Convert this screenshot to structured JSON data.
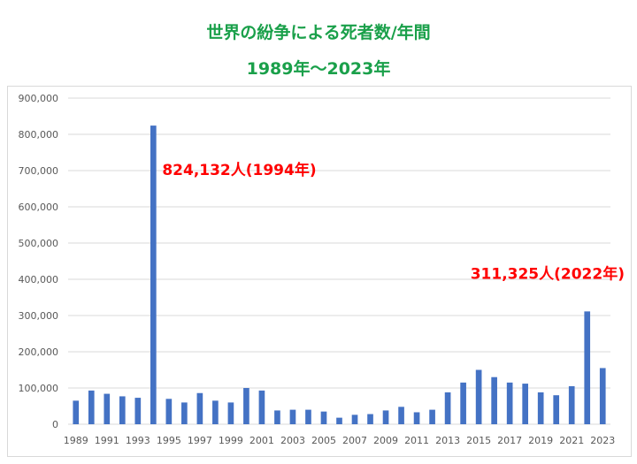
{
  "title": "世界の紛争による死者数/年間",
  "subtitle": "1989年～2023年",
  "colors": {
    "bar": "#4472c4",
    "title": "#1aa04a",
    "annotation": "#ff0000",
    "grid": "#d9d9d9",
    "axis_text": "#595959"
  },
  "chart_data": {
    "type": "bar",
    "title": "世界の紛争による死者数/年間",
    "subtitle": "1989年～2023年",
    "xlabel": "",
    "ylabel": "",
    "ylim": [
      0,
      900000
    ],
    "y_ticks": [
      "0",
      "100,000",
      "200,000",
      "300,000",
      "400,000",
      "500,000",
      "600,000",
      "700,000",
      "800,000",
      "900,000"
    ],
    "categories": [
      "1989",
      "1990",
      "1991",
      "1992",
      "1993",
      "1994",
      "1995",
      "1996",
      "1997",
      "1998",
      "1999",
      "2000",
      "2001",
      "2002",
      "2003",
      "2004",
      "2005",
      "2006",
      "2007",
      "2008",
      "2009",
      "2010",
      "2011",
      "2012",
      "2013",
      "2014",
      "2015",
      "2016",
      "2017",
      "2018",
      "2019",
      "2020",
      "2021",
      "2022",
      "2023"
    ],
    "x_tick_labels": [
      "1989",
      "1991",
      "1993",
      "1995",
      "1997",
      "1999",
      "2001",
      "2003",
      "2005",
      "2007",
      "2009",
      "2011",
      "2013",
      "2015",
      "2017",
      "2019",
      "2021",
      "2023"
    ],
    "values": [
      65000,
      93000,
      84000,
      77000,
      73000,
      824132,
      70000,
      60000,
      86000,
      65000,
      60000,
      100000,
      93000,
      38000,
      40000,
      40000,
      35000,
      18000,
      26000,
      28000,
      38000,
      48000,
      33000,
      40000,
      88000,
      115000,
      150000,
      130000,
      115000,
      112000,
      88000,
      80000,
      105000,
      311325,
      155000
    ],
    "grid": true,
    "legend": "none",
    "annotations": [
      {
        "text": "824,132人(1994年)",
        "category": "1994",
        "value": 824132
      },
      {
        "text": "311,325人(2022年)",
        "category": "2022",
        "value": 311325
      }
    ]
  }
}
